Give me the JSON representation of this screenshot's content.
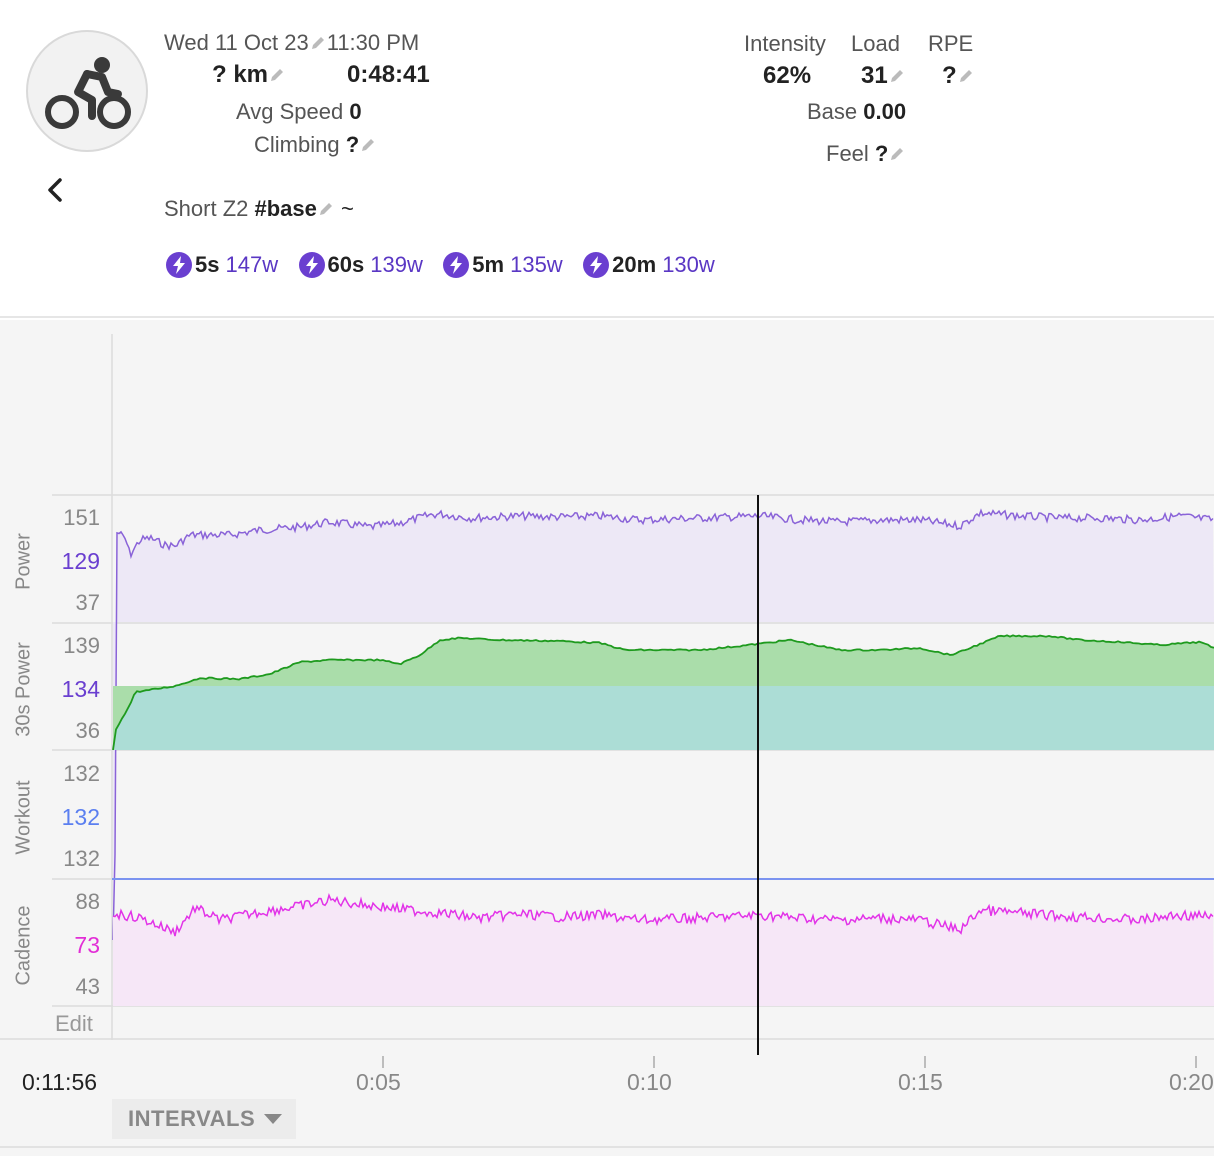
{
  "activity": {
    "date": "Wed 11 Oct 23",
    "time": "11:30 PM",
    "distance": "? km",
    "duration": "0:48:41",
    "avg_speed_label": "Avg Speed",
    "avg_speed_value": "0",
    "climbing_label": "Climbing",
    "climbing_value": "?",
    "name": "Short Z2",
    "tag": "#base",
    "tilde": "~"
  },
  "metrics": {
    "intensity_label": "Intensity",
    "intensity_value": "62%",
    "load_label": "Load",
    "load_value": "31",
    "rpe_label": "RPE",
    "rpe_value": "?",
    "base_label": "Base",
    "base_value": "0.00",
    "feel_label": "Feel",
    "feel_value": "?"
  },
  "peaks": [
    {
      "duration": "5s",
      "power": "147w"
    },
    {
      "duration": "60s",
      "power": "139w"
    },
    {
      "duration": "5m",
      "power": "135w"
    },
    {
      "duration": "20m",
      "power": "130w"
    }
  ],
  "chart": {
    "rows": [
      {
        "name": "Power",
        "top": "151",
        "mid": "129",
        "bottom": "37",
        "mid_color": "#6a3fd0"
      },
      {
        "name": "30s Power",
        "top": "139",
        "mid": "134",
        "bottom": "36",
        "mid_color": "#6a3fd0"
      },
      {
        "name": "Workout",
        "top": "132",
        "mid": "132",
        "bottom": "132",
        "mid_color": "#5b7ff0"
      },
      {
        "name": "Cadence",
        "top": "88",
        "mid": "73",
        "bottom": "43",
        "mid_color": "#e22ed6"
      }
    ],
    "edit_label": "Edit",
    "cursor_time": "0:11:56",
    "x_ticks": [
      "0:05",
      "0:10",
      "0:15",
      "0:20"
    ],
    "intervals_label": "INTERVALS"
  },
  "colors": {
    "power_line": "#8a63d8",
    "power_fill": "#ede8f6",
    "power30_line": "#1e9a1e",
    "power30_fill_above": "#aaddaa",
    "power30_fill_below": "#acddd6",
    "workout_line": "#7b93f0",
    "cadence_line": "#e233e8",
    "cadence_fill": "#f6e7f7",
    "accent": "#6a3fd0"
  },
  "icons": {
    "avatar": "cycling-icon",
    "back": "chevron-left-icon",
    "edit": "pencil-icon",
    "peak": "lightning-icon",
    "dropdown": "caret-down-icon"
  }
}
